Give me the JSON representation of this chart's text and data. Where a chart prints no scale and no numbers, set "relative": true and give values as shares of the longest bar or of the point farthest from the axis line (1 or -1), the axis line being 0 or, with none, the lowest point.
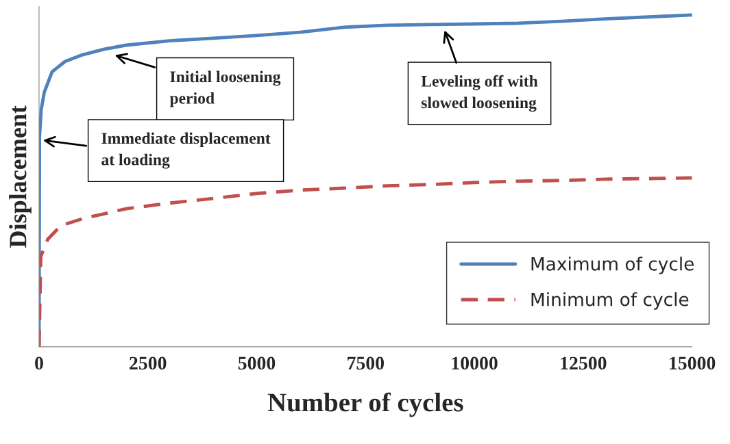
{
  "chart_data": {
    "type": "line",
    "xlabel": "Number of cycles",
    "ylabel": "Displacement",
    "relative": true,
    "xlim": [
      0,
      15000
    ],
    "xticks": [
      0,
      2500,
      5000,
      7500,
      10000,
      12500,
      15000
    ],
    "series": [
      {
        "name": "Maximum of cycle",
        "color": "#4f81bd",
        "line_style": "solid",
        "x": [
          0,
          10,
          50,
          120,
          300,
          600,
          1000,
          1500,
          2000,
          3000,
          4000,
          5000,
          6000,
          7000,
          8000,
          9000,
          10000,
          11000,
          12000,
          13000,
          14000,
          15000
        ],
        "values": [
          0,
          0.633,
          0.715,
          0.767,
          0.829,
          0.86,
          0.88,
          0.897,
          0.909,
          0.922,
          0.93,
          0.938,
          0.948,
          0.963,
          0.969,
          0.971,
          0.973,
          0.975,
          0.981,
          0.988,
          0.994,
          1.0
        ]
      },
      {
        "name": "Minimum of cycle",
        "color": "#c0504d",
        "line_style": "dashed",
        "x": [
          0,
          40,
          200,
          500,
          1000,
          2000,
          3000,
          4000,
          5000,
          6000,
          7000,
          8000,
          9000,
          10000,
          11000,
          12000,
          13000,
          14000,
          15000
        ],
        "values": [
          0,
          0.272,
          0.324,
          0.365,
          0.386,
          0.416,
          0.433,
          0.447,
          0.462,
          0.472,
          0.478,
          0.485,
          0.489,
          0.495,
          0.499,
          0.501,
          0.505,
          0.507,
          0.509
        ]
      }
    ],
    "annotations": [
      "Initial loosening\nperiod",
      "Leveling off with\nslowed loosening",
      "Immediate displacement\nat loading"
    ],
    "legend": "bottom right",
    "grid": false
  }
}
